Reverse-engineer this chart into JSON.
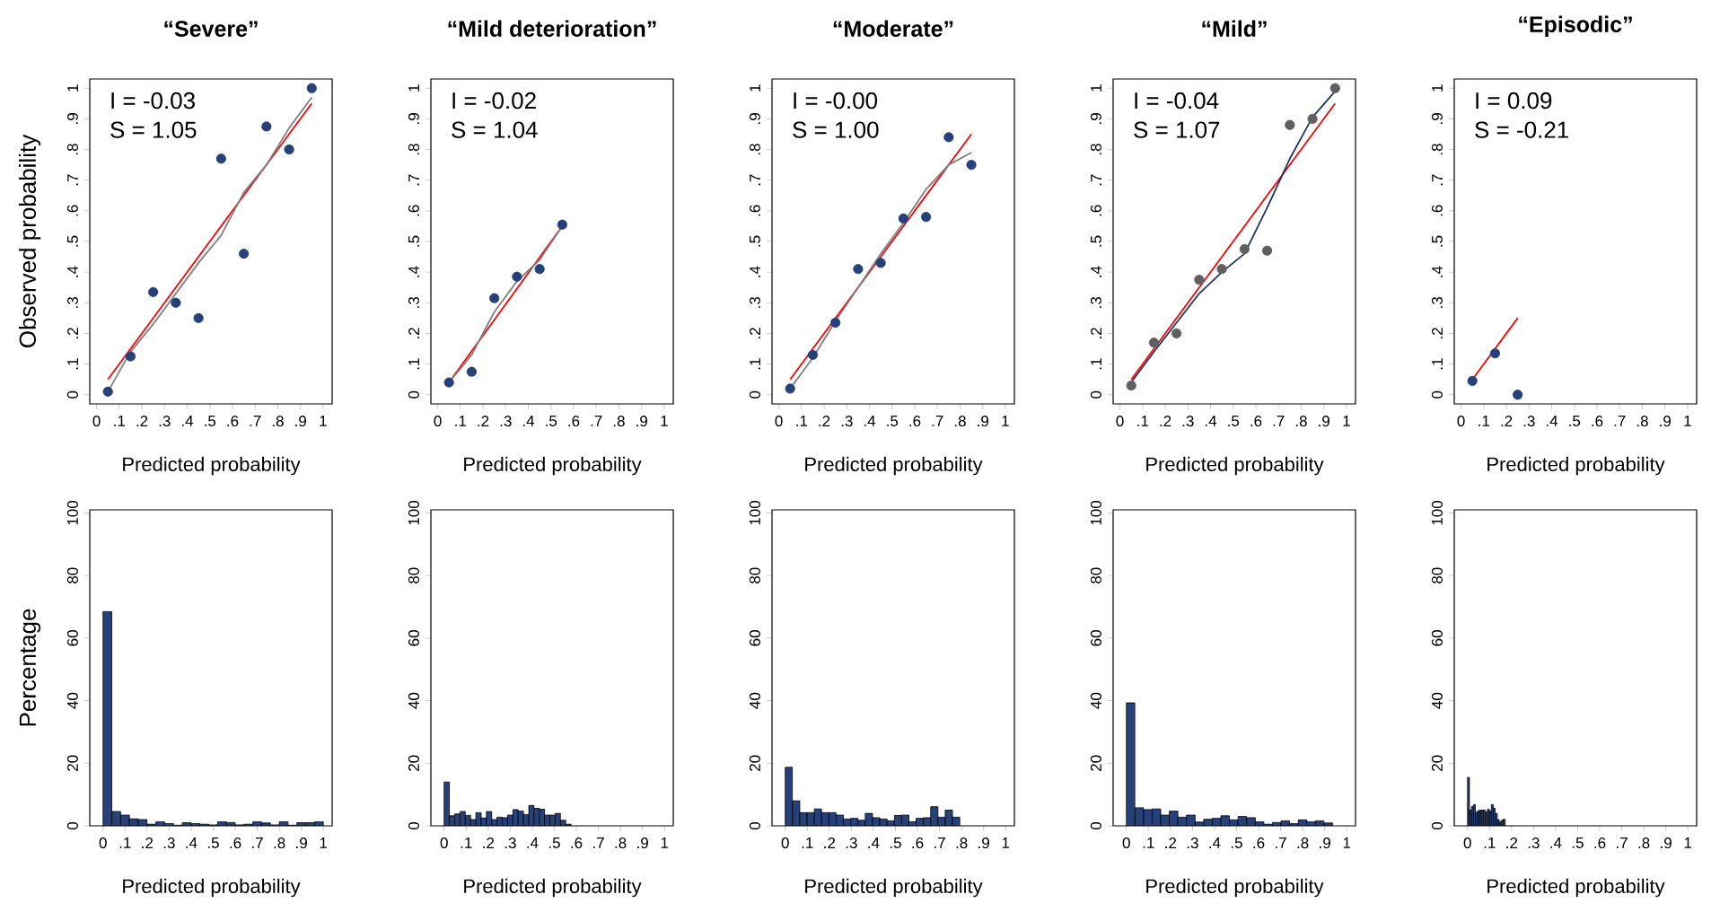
{
  "chart_data": [
    {
      "type": "scatter",
      "title": "“Severe”",
      "xlabel": "Predicted probability",
      "ylabel": "Observed probability",
      "marker": "circle",
      "annotations": [
        "I = -0.03",
        "S = 1.05"
      ],
      "xlim": [
        -0.03,
        1.04
      ],
      "ylim": [
        -0.03,
        1.03
      ],
      "xticks": [
        0,
        {
          "value": 0.1,
          "label": ".1"
        },
        {
          "value": 0.2,
          "label": ".2"
        },
        {
          "value": 0.3,
          "label": ".3"
        },
        {
          "value": 0.4,
          "label": ".4"
        },
        {
          "value": 0.5,
          "label": ".5"
        },
        {
          "value": 0.6,
          "label": ".6"
        },
        {
          "value": 0.7,
          "label": ".7"
        },
        {
          "value": 0.8,
          "label": ".8"
        },
        {
          "value": 0.9,
          "label": ".9"
        },
        1
      ],
      "yticks": [
        0,
        {
          "value": 0.1,
          "label": ".1"
        },
        {
          "value": 0.2,
          "label": ".2"
        },
        {
          "value": 0.3,
          "label": ".3"
        },
        {
          "value": 0.4,
          "label": ".4"
        },
        {
          "value": 0.5,
          "label": ".5"
        },
        {
          "value": 0.6,
          "label": ".6"
        },
        {
          "value": 0.7,
          "label": ".7"
        },
        {
          "value": 0.8,
          "label": ".8"
        },
        {
          "value": 0.9,
          "label": ".9"
        },
        1
      ],
      "series": [
        {
          "type": "line",
          "marker": "none",
          "color": "#ff0000",
          "x": [
            0.05,
            0.95
          ],
          "values": [
            0.05,
            0.95
          ]
        },
        {
          "type": "line",
          "marker": "none",
          "color": "#808080",
          "x": [
            0.05,
            0.15,
            0.25,
            0.35,
            0.45,
            0.55,
            0.65,
            0.75,
            0.85,
            0.95
          ],
          "values": [
            0.01,
            0.14,
            0.23,
            0.33,
            0.43,
            0.52,
            0.66,
            0.75,
            0.87,
            0.97
          ]
        },
        {
          "type": "scatter",
          "color": "#26407a",
          "x": [
            0.05,
            0.15,
            0.25,
            0.35,
            0.45,
            0.55,
            0.65,
            0.75,
            0.85,
            0.95
          ],
          "values": [
            0.01,
            0.125,
            0.335,
            0.3,
            0.25,
            0.77,
            0.46,
            0.875,
            0.8,
            1.0
          ]
        }
      ]
    },
    {
      "type": "scatter",
      "title": "“Mild deterioration”",
      "xlabel": "Predicted probability",
      "marker": "circle",
      "annotations": [
        "I = -0.02",
        "S = 1.04"
      ],
      "xlim": [
        -0.03,
        1.04
      ],
      "ylim": [
        -0.03,
        1.03
      ],
      "xticks": [
        0,
        {
          "value": 0.1,
          "label": ".1"
        },
        {
          "value": 0.2,
          "label": ".2"
        },
        {
          "value": 0.3,
          "label": ".3"
        },
        {
          "value": 0.4,
          "label": ".4"
        },
        {
          "value": 0.5,
          "label": ".5"
        },
        {
          "value": 0.6,
          "label": ".6"
        },
        {
          "value": 0.7,
          "label": ".7"
        },
        {
          "value": 0.8,
          "label": ".8"
        },
        {
          "value": 0.9,
          "label": ".9"
        },
        1
      ],
      "yticks": [
        0,
        {
          "value": 0.1,
          "label": ".1"
        },
        {
          "value": 0.2,
          "label": ".2"
        },
        {
          "value": 0.3,
          "label": ".3"
        },
        {
          "value": 0.4,
          "label": ".4"
        },
        {
          "value": 0.5,
          "label": ".5"
        },
        {
          "value": 0.6,
          "label": ".6"
        },
        {
          "value": 0.7,
          "label": ".7"
        },
        {
          "value": 0.8,
          "label": ".8"
        },
        {
          "value": 0.9,
          "label": ".9"
        },
        1
      ],
      "series": [
        {
          "type": "line",
          "marker": "none",
          "color": "#ff0000",
          "x": [
            0.05,
            0.55
          ],
          "values": [
            0.04,
            0.55
          ]
        },
        {
          "type": "line",
          "marker": "none",
          "color": "#808080",
          "x": [
            0.05,
            0.15,
            0.25,
            0.35,
            0.45,
            0.55
          ],
          "values": [
            0.04,
            0.13,
            0.27,
            0.37,
            0.44,
            0.55
          ]
        },
        {
          "type": "scatter",
          "color": "#26407a",
          "x": [
            0.05,
            0.15,
            0.25,
            0.35,
            0.45,
            0.55
          ],
          "values": [
            0.04,
            0.075,
            0.315,
            0.385,
            0.41,
            0.555
          ]
        }
      ]
    },
    {
      "type": "scatter",
      "title": "“Moderate”",
      "xlabel": "Predicted probability",
      "marker": "circle",
      "annotations": [
        "I = -0.00",
        "S = 1.00"
      ],
      "xlim": [
        -0.03,
        1.04
      ],
      "ylim": [
        -0.03,
        1.03
      ],
      "xticks": [
        0,
        {
          "value": 0.1,
          "label": ".1"
        },
        {
          "value": 0.2,
          "label": ".2"
        },
        {
          "value": 0.3,
          "label": ".3"
        },
        {
          "value": 0.4,
          "label": ".4"
        },
        {
          "value": 0.5,
          "label": ".5"
        },
        {
          "value": 0.6,
          "label": ".6"
        },
        {
          "value": 0.7,
          "label": ".7"
        },
        {
          "value": 0.8,
          "label": ".8"
        },
        {
          "value": 0.9,
          "label": ".9"
        },
        1
      ],
      "yticks": [
        0,
        {
          "value": 0.1,
          "label": ".1"
        },
        {
          "value": 0.2,
          "label": ".2"
        },
        {
          "value": 0.3,
          "label": ".3"
        },
        {
          "value": 0.4,
          "label": ".4"
        },
        {
          "value": 0.5,
          "label": ".5"
        },
        {
          "value": 0.6,
          "label": ".6"
        },
        {
          "value": 0.7,
          "label": ".7"
        },
        {
          "value": 0.8,
          "label": ".8"
        },
        {
          "value": 0.9,
          "label": ".9"
        },
        1
      ],
      "series": [
        {
          "type": "line",
          "marker": "none",
          "color": "#ff0000",
          "x": [
            0.05,
            0.85
          ],
          "values": [
            0.05,
            0.85
          ]
        },
        {
          "type": "line",
          "marker": "none",
          "color": "#808080",
          "x": [
            0.05,
            0.15,
            0.25,
            0.35,
            0.45,
            0.55,
            0.65,
            0.75,
            0.85
          ],
          "values": [
            0.02,
            0.12,
            0.24,
            0.35,
            0.46,
            0.56,
            0.67,
            0.75,
            0.79
          ]
        },
        {
          "type": "scatter",
          "color": "#26407a",
          "x": [
            0.05,
            0.15,
            0.25,
            0.35,
            0.45,
            0.55,
            0.65,
            0.75,
            0.85
          ],
          "values": [
            0.02,
            0.13,
            0.235,
            0.41,
            0.43,
            0.575,
            0.58,
            0.84,
            0.75
          ]
        }
      ]
    },
    {
      "type": "scatter",
      "title": "“Mild”",
      "xlabel": "Predicted probability",
      "marker": "circle",
      "annotations": [
        "I = -0.04",
        "S = 1.07"
      ],
      "xlim": [
        -0.03,
        1.04
      ],
      "ylim": [
        -0.03,
        1.03
      ],
      "xticks": [
        0,
        {
          "value": 0.1,
          "label": ".1"
        },
        {
          "value": 0.2,
          "label": ".2"
        },
        {
          "value": 0.3,
          "label": ".3"
        },
        {
          "value": 0.4,
          "label": ".4"
        },
        {
          "value": 0.5,
          "label": ".5"
        },
        {
          "value": 0.6,
          "label": ".6"
        },
        {
          "value": 0.7,
          "label": ".7"
        },
        {
          "value": 0.8,
          "label": ".8"
        },
        {
          "value": 0.9,
          "label": ".9"
        },
        1
      ],
      "yticks": [
        0,
        {
          "value": 0.1,
          "label": ".1"
        },
        {
          "value": 0.2,
          "label": ".2"
        },
        {
          "value": 0.3,
          "label": ".3"
        },
        {
          "value": 0.4,
          "label": ".4"
        },
        {
          "value": 0.5,
          "label": ".5"
        },
        {
          "value": 0.6,
          "label": ".6"
        },
        {
          "value": 0.7,
          "label": ".7"
        },
        {
          "value": 0.8,
          "label": ".8"
        },
        {
          "value": 0.9,
          "label": ".9"
        },
        1
      ],
      "series": [
        {
          "type": "line",
          "marker": "none",
          "color": "#ff0000",
          "x": [
            0.05,
            0.95
          ],
          "values": [
            0.05,
            0.95
          ]
        },
        {
          "type": "line",
          "marker": "none",
          "color": "#1f3566",
          "x": [
            0.05,
            0.15,
            0.25,
            0.35,
            0.45,
            0.55,
            0.65,
            0.75,
            0.85,
            0.95
          ],
          "values": [
            0.04,
            0.14,
            0.235,
            0.33,
            0.4,
            0.46,
            0.61,
            0.77,
            0.905,
            0.99
          ]
        },
        {
          "type": "scatter",
          "color": "#606060",
          "x": [
            0.05,
            0.15,
            0.25,
            0.35,
            0.45,
            0.55,
            0.65,
            0.75,
            0.85,
            0.95
          ],
          "values": [
            0.03,
            0.17,
            0.2,
            0.375,
            0.41,
            0.475,
            0.47,
            0.88,
            0.9,
            1.0
          ]
        }
      ]
    },
    {
      "type": "scatter",
      "title": "“Episodic”",
      "xlabel": "Predicted probability",
      "marker": "circle",
      "annotations": [
        "I = 0.09",
        "S = -0.21"
      ],
      "xlim": [
        -0.03,
        1.04
      ],
      "ylim": [
        -0.03,
        1.03
      ],
      "xticks": [
        0,
        {
          "value": 0.1,
          "label": ".1"
        },
        {
          "value": 0.2,
          "label": ".2"
        },
        {
          "value": 0.3,
          "label": ".3"
        },
        {
          "value": 0.4,
          "label": ".4"
        },
        {
          "value": 0.5,
          "label": ".5"
        },
        {
          "value": 0.6,
          "label": ".6"
        },
        {
          "value": 0.7,
          "label": ".7"
        },
        {
          "value": 0.8,
          "label": ".8"
        },
        {
          "value": 0.9,
          "label": ".9"
        },
        1
      ],
      "yticks": [
        0,
        {
          "value": 0.1,
          "label": ".1"
        },
        {
          "value": 0.2,
          "label": ".2"
        },
        {
          "value": 0.3,
          "label": ".3"
        },
        {
          "value": 0.4,
          "label": ".4"
        },
        {
          "value": 0.5,
          "label": ".5"
        },
        {
          "value": 0.6,
          "label": ".6"
        },
        {
          "value": 0.7,
          "label": ".7"
        },
        {
          "value": 0.8,
          "label": ".8"
        },
        {
          "value": 0.9,
          "label": ".9"
        },
        1
      ],
      "series": [
        {
          "type": "line",
          "marker": "none",
          "color": "#ff0000",
          "x": [
            0.05,
            0.25
          ],
          "values": [
            0.05,
            0.25
          ]
        },
        {
          "type": "scatter",
          "color": "#26407a",
          "x": [
            0.05,
            0.15,
            0.25
          ],
          "values": [
            0.045,
            0.135,
            0.0
          ]
        }
      ]
    },
    {
      "type": "histogram",
      "xlabel": "Predicted probability",
      "ylabel": "Percentage",
      "color": "#26407a",
      "xlim": [
        -0.06,
        1.04
      ],
      "ylim": [
        0,
        101
      ],
      "xticks": [
        0,
        {
          "value": 0.1,
          "label": ".1"
        },
        {
          "value": 0.2,
          "label": ".2"
        },
        {
          "value": 0.3,
          "label": ".3"
        },
        {
          "value": 0.4,
          "label": ".4"
        },
        {
          "value": 0.5,
          "label": ".5"
        },
        {
          "value": 0.6,
          "label": ".6"
        },
        {
          "value": 0.7,
          "label": ".7"
        },
        {
          "value": 0.8,
          "label": ".8"
        },
        {
          "value": 0.9,
          "label": ".9"
        },
        1
      ],
      "yticks": [
        0,
        20,
        40,
        60,
        80,
        100
      ],
      "bins": [
        0,
        0.04,
        0.08,
        0.12,
        0.16,
        0.2,
        0.24,
        0.28,
        0.32,
        0.36,
        0.4,
        0.44,
        0.48,
        0.52,
        0.56,
        0.6,
        0.64,
        0.68,
        0.72,
        0.76,
        0.8,
        0.84,
        0.88,
        0.92,
        0.96,
        1.0
      ],
      "values": [
        68.5,
        4.6,
        3.5,
        2.3,
        2.0,
        0.6,
        1.3,
        0.7,
        0.2,
        1.0,
        0.7,
        0.6,
        0.3,
        1.3,
        1.1,
        0.3,
        0.6,
        1.3,
        0.9,
        0.3,
        1.3,
        0.2,
        1.0,
        1.0,
        1.3
      ]
    },
    {
      "type": "histogram",
      "xlabel": "Predicted probability",
      "color": "#26407a",
      "xlim": [
        -0.06,
        1.04
      ],
      "ylim": [
        0,
        101
      ],
      "xticks": [
        0,
        {
          "value": 0.1,
          "label": ".1"
        },
        {
          "value": 0.2,
          "label": ".2"
        },
        {
          "value": 0.3,
          "label": ".3"
        },
        {
          "value": 0.4,
          "label": ".4"
        },
        {
          "value": 0.5,
          "label": ".5"
        },
        {
          "value": 0.6,
          "label": ".6"
        },
        {
          "value": 0.7,
          "label": ".7"
        },
        {
          "value": 0.8,
          "label": ".8"
        },
        {
          "value": 0.9,
          "label": ".9"
        },
        1
      ],
      "yticks": [
        0,
        20,
        40,
        60,
        80,
        100
      ],
      "bins": [
        0,
        0.024,
        0.048,
        0.072,
        0.096,
        0.12,
        0.144,
        0.168,
        0.192,
        0.216,
        0.24,
        0.264,
        0.288,
        0.312,
        0.336,
        0.36,
        0.384,
        0.408,
        0.432,
        0.456,
        0.48,
        0.504,
        0.528,
        0.552,
        0.576
      ],
      "values": [
        14.0,
        3.2,
        3.8,
        4.6,
        3.4,
        2.0,
        4.2,
        2.5,
        4.6,
        2.0,
        2.8,
        2.6,
        3.5,
        5.2,
        4.7,
        3.6,
        6.5,
        5.6,
        5.3,
        3.5,
        3.5,
        4.0,
        1.8,
        0.6
      ]
    },
    {
      "type": "histogram",
      "xlabel": "Predicted probability",
      "color": "#26407a",
      "xlim": [
        -0.06,
        1.04
      ],
      "ylim": [
        0,
        101
      ],
      "xticks": [
        0,
        {
          "value": 0.1,
          "label": ".1"
        },
        {
          "value": 0.2,
          "label": ".2"
        },
        {
          "value": 0.3,
          "label": ".3"
        },
        {
          "value": 0.4,
          "label": ".4"
        },
        {
          "value": 0.5,
          "label": ".5"
        },
        {
          "value": 0.6,
          "label": ".6"
        },
        {
          "value": 0.7,
          "label": ".7"
        },
        {
          "value": 0.8,
          "label": ".8"
        },
        {
          "value": 0.9,
          "label": ".9"
        },
        1
      ],
      "yticks": [
        0,
        20,
        40,
        60,
        80,
        100
      ],
      "bins": [
        0,
        0.033,
        0.066,
        0.099,
        0.132,
        0.165,
        0.198,
        0.231,
        0.264,
        0.297,
        0.33,
        0.363,
        0.396,
        0.429,
        0.462,
        0.495,
        0.528,
        0.561,
        0.594,
        0.627,
        0.66,
        0.693,
        0.726,
        0.759,
        0.792
      ],
      "values": [
        18.7,
        8.0,
        4.2,
        4.2,
        5.4,
        4.2,
        4.2,
        3.5,
        2.2,
        2.4,
        1.8,
        4.0,
        2.6,
        2.2,
        1.6,
        3.3,
        3.5,
        1.3,
        2.4,
        2.6,
        6.1,
        2.8,
        5.0,
        2.8
      ]
    },
    {
      "type": "histogram",
      "xlabel": "Predicted probability",
      "color": "#26407a",
      "xlim": [
        -0.06,
        1.04
      ],
      "ylim": [
        0,
        101
      ],
      "xticks": [
        0,
        {
          "value": 0.1,
          "label": ".1"
        },
        {
          "value": 0.2,
          "label": ".2"
        },
        {
          "value": 0.3,
          "label": ".3"
        },
        {
          "value": 0.4,
          "label": ".4"
        },
        {
          "value": 0.5,
          "label": ".5"
        },
        {
          "value": 0.6,
          "label": ".6"
        },
        {
          "value": 0.7,
          "label": ".7"
        },
        {
          "value": 0.8,
          "label": ".8"
        },
        {
          "value": 0.9,
          "label": ".9"
        },
        1
      ],
      "yticks": [
        0,
        20,
        40,
        60,
        80,
        100
      ],
      "bins": [
        0,
        0.039,
        0.078,
        0.117,
        0.156,
        0.195,
        0.234,
        0.273,
        0.312,
        0.351,
        0.39,
        0.429,
        0.468,
        0.507,
        0.546,
        0.585,
        0.624,
        0.663,
        0.702,
        0.741,
        0.78,
        0.819,
        0.858,
        0.897,
        0.936
      ],
      "values": [
        39.3,
        5.8,
        5.2,
        5.4,
        3.5,
        4.7,
        2.8,
        3.5,
        1.2,
        2.1,
        2.4,
        3.2,
        1.9,
        3.0,
        2.6,
        1.3,
        0.6,
        1.1,
        1.6,
        0.7,
        1.9,
        1.3,
        1.6,
        0.9
      ]
    },
    {
      "type": "histogram",
      "xlabel": "Predicted probability",
      "color": "#26407a",
      "xlim": [
        -0.06,
        1.04
      ],
      "ylim": [
        0,
        101
      ],
      "xticks": [
        0,
        {
          "value": 0.1,
          "label": ".1"
        },
        {
          "value": 0.2,
          "label": ".2"
        },
        {
          "value": 0.3,
          "label": ".3"
        },
        {
          "value": 0.4,
          "label": ".4"
        },
        {
          "value": 0.5,
          "label": ".5"
        },
        {
          "value": 0.6,
          "label": ".6"
        },
        {
          "value": 0.7,
          "label": ".7"
        },
        {
          "value": 0.8,
          "label": ".8"
        },
        {
          "value": 0.9,
          "label": ".9"
        },
        1
      ],
      "yticks": [
        0,
        20,
        40,
        60,
        80,
        100
      ],
      "bins": [
        0,
        0.009,
        0.018,
        0.027,
        0.036,
        0.045,
        0.054,
        0.063,
        0.072,
        0.081,
        0.09,
        0.099,
        0.108,
        0.117,
        0.126,
        0.135,
        0.144,
        0.153,
        0.162,
        0.171
      ],
      "values": [
        15.5,
        5.0,
        6.2,
        6.8,
        4.3,
        4.8,
        5.0,
        5.0,
        5.0,
        4.4,
        5.3,
        4.7,
        6.8,
        5.6,
        4.0,
        2.0,
        1.2,
        1.8,
        2.1
      ]
    }
  ]
}
